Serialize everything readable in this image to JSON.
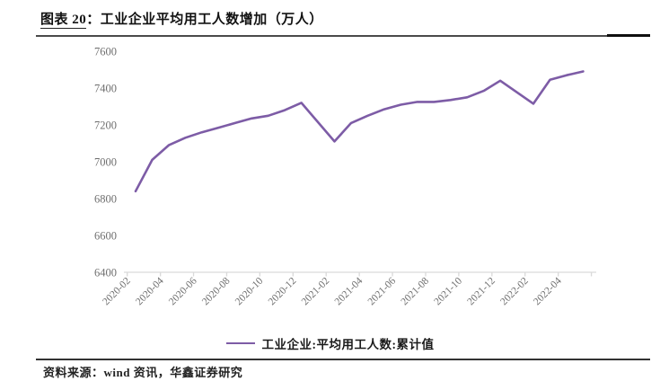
{
  "page": {
    "figure_label": "图表 20",
    "title_separator": "：",
    "title": "工业企业平均用工人数增加（万人）",
    "source_note": "资料来源：wind 资讯，华鑫证券研究"
  },
  "legend": {
    "label": "工业企业:平均用工人数:累计值",
    "line_color": "#7D5CA6"
  },
  "chart_data": {
    "type": "line",
    "title": "工业企业平均用工人数增加（万人）",
    "x": [
      "2020-02",
      "2020-03",
      "2020-04",
      "2020-05",
      "2020-06",
      "2020-07",
      "2020-08",
      "2020-09",
      "2020-10",
      "2020-11",
      "2020-12",
      "2021-02",
      "2021-03",
      "2021-04",
      "2021-05",
      "2021-06",
      "2021-07",
      "2021-08",
      "2021-09",
      "2021-10",
      "2021-11",
      "2021-12",
      "2022-02",
      "2022-03",
      "2022-04",
      "2022-05"
    ],
    "series": [
      {
        "name": "工业企业:平均用工人数:累计值",
        "color": "#7D5CA6",
        "values": [
          6840,
          7010,
          7090,
          7130,
          7160,
          7185,
          7210,
          7235,
          7250,
          7280,
          7320,
          7110,
          7210,
          7250,
          7285,
          7310,
          7325,
          7325,
          7335,
          7350,
          7385,
          7440,
          7315,
          7445,
          7470,
          7490
        ]
      }
    ],
    "x_tick_labels": [
      "2020-02",
      "2020-04",
      "2020-06",
      "2020-08",
      "2020-10",
      "2020-12",
      "2021-02",
      "2021-04",
      "2021-06",
      "2021-08",
      "2021-10",
      "2021-12",
      "2022-02",
      "2022-04"
    ],
    "y_ticks": [
      7600,
      7400,
      7200,
      7000,
      6800,
      6600,
      6400
    ],
    "ylim": [
      6400,
      7600
    ],
    "grid": false,
    "legend_position": "bottom",
    "axis_color": "#d9d9d9",
    "label_color": "#6f6f6f",
    "xlabel": "",
    "ylabel": ""
  }
}
